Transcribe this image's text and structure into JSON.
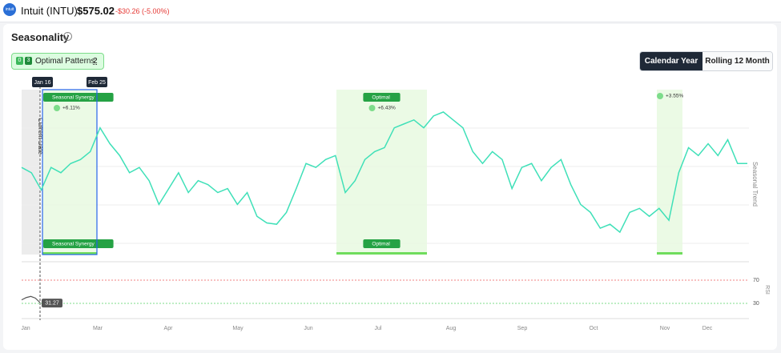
{
  "header": {
    "logo": "intuit",
    "title": "Intuit (INTU)",
    "price": "$575.02",
    "change": "-$30.26 (-5.00%)"
  },
  "section": {
    "title": "Seasonality"
  },
  "patterns_button": {
    "badges": [
      "0",
      "3"
    ],
    "label": "Optimal Patterns:",
    "count": "2"
  },
  "toggle": {
    "options": [
      "Calendar Year",
      "Rolling 12 Month"
    ],
    "active": 0
  },
  "chart": {
    "months": [
      "Jan",
      "Mar",
      "Apr",
      "May",
      "Jun",
      "Jul",
      "Aug",
      "Sep",
      "Oct",
      "Nov",
      "Dec"
    ],
    "trend_label": "Seasonal Trend",
    "current_date": "Current Date",
    "trend": [
      52,
      48,
      35,
      52,
      48,
      55,
      58,
      64,
      82,
      70,
      61,
      48,
      52,
      42,
      24,
      36,
      48,
      33,
      42,
      39,
      33,
      36,
      24,
      33,
      15,
      10,
      9,
      18,
      36,
      55,
      52,
      58,
      61,
      33,
      42,
      58,
      64,
      67,
      82,
      85,
      88,
      82,
      91,
      94,
      88,
      82,
      64,
      55,
      64,
      58,
      36,
      52,
      55,
      42,
      52,
      58,
      39,
      24,
      18,
      6,
      9,
      3,
      18,
      21,
      15,
      21,
      12,
      48,
      67,
      61,
      70,
      61,
      73,
      55,
      55
    ],
    "trend_color": "#3fe0b8",
    "patterns": [
      {
        "name": "Seasonal Synergy",
        "start": "Jan 16",
        "end": "Feb 25",
        "return": "+6.11%"
      },
      {
        "name": "Optimal",
        "return": "+6.43%"
      },
      {
        "return": "+3.55%"
      }
    ],
    "rsi": {
      "label": "RSI",
      "ticks": [
        70,
        30
      ],
      "current": 31.27,
      "values": [
        36,
        40,
        42,
        39,
        31.27
      ]
    }
  }
}
